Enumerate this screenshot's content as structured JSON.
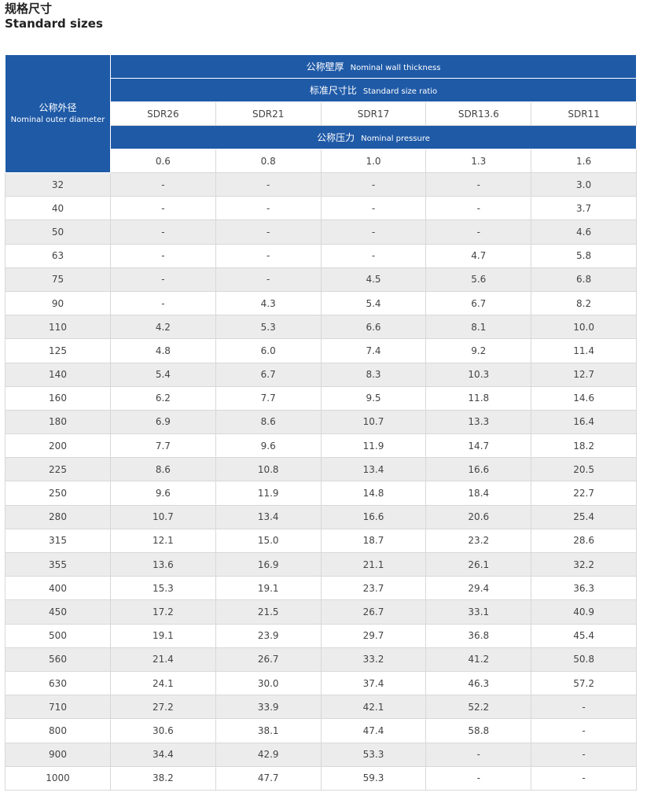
{
  "header": {
    "title": "规格尺寸",
    "subtitle": "Standard sizes"
  },
  "table": {
    "corner": {
      "zh": "公称外径",
      "en": "Nominal outer diameter"
    },
    "wall": {
      "zh": "公称壁厚",
      "en": "Nominal wall thickness"
    },
    "ratio": {
      "zh": "标准尺寸比",
      "en": "Standard size ratio"
    },
    "sdr": [
      "SDR26",
      "SDR21",
      "SDR17",
      "SDR13.6",
      "SDR11"
    ],
    "pressure": {
      "zh": "公称压力",
      "en": "Nominal pressure"
    },
    "pressures": [
      "0.6",
      "0.8",
      "1.0",
      "1.3",
      "1.6"
    ],
    "rows": [
      [
        "32",
        "-",
        "-",
        "-",
        "-",
        "3.0"
      ],
      [
        "40",
        "-",
        "-",
        "-",
        "-",
        "3.7"
      ],
      [
        "50",
        "-",
        "-",
        "-",
        "-",
        "4.6"
      ],
      [
        "63",
        "-",
        "-",
        "-",
        "4.7",
        "5.8"
      ],
      [
        "75",
        "-",
        "-",
        "4.5",
        "5.6",
        "6.8"
      ],
      [
        "90",
        "-",
        "4.3",
        "5.4",
        "6.7",
        "8.2"
      ],
      [
        "110",
        "4.2",
        "5.3",
        "6.6",
        "8.1",
        "10.0"
      ],
      [
        "125",
        "4.8",
        "6.0",
        "7.4",
        "9.2",
        "11.4"
      ],
      [
        "140",
        "5.4",
        "6.7",
        "8.3",
        "10.3",
        "12.7"
      ],
      [
        "160",
        "6.2",
        "7.7",
        "9.5",
        "11.8",
        "14.6"
      ],
      [
        "180",
        "6.9",
        "8.6",
        "10.7",
        "13.3",
        "16.4"
      ],
      [
        "200",
        "7.7",
        "9.6",
        "11.9",
        "14.7",
        "18.2"
      ],
      [
        "225",
        "8.6",
        "10.8",
        "13.4",
        "16.6",
        "20.5"
      ],
      [
        "250",
        "9.6",
        "11.9",
        "14.8",
        "18.4",
        "22.7"
      ],
      [
        "280",
        "10.7",
        "13.4",
        "16.6",
        "20.6",
        "25.4"
      ],
      [
        "315",
        "12.1",
        "15.0",
        "18.7",
        "23.2",
        "28.6"
      ],
      [
        "355",
        "13.6",
        "16.9",
        "21.1",
        "26.1",
        "32.2"
      ],
      [
        "400",
        "15.3",
        "19.1",
        "23.7",
        "29.4",
        "36.3"
      ],
      [
        "450",
        "17.2",
        "21.5",
        "26.7",
        "33.1",
        "40.9"
      ],
      [
        "500",
        "19.1",
        "23.9",
        "29.7",
        "36.8",
        "45.4"
      ],
      [
        "560",
        "21.4",
        "26.7",
        "33.2",
        "41.2",
        "50.8"
      ],
      [
        "630",
        "24.1",
        "30.0",
        "37.4",
        "46.3",
        "57.2"
      ],
      [
        "710",
        "27.2",
        "33.9",
        "42.1",
        "52.2",
        "-"
      ],
      [
        "800",
        "30.6",
        "38.1",
        "47.4",
        "58.8",
        "-"
      ],
      [
        "900",
        "34.4",
        "42.9",
        "53.3",
        "-",
        "-"
      ],
      [
        "1000",
        "38.2",
        "47.7",
        "59.3",
        "-",
        "-"
      ]
    ]
  }
}
